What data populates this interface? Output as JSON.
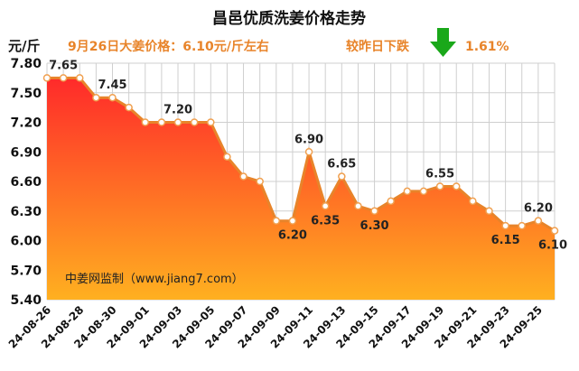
{
  "chart_data": {
    "type": "area",
    "title": "昌邑优质洗姜价格走势",
    "subtitle": "9月26日大姜价格：6.10元/斤左右",
    "change_text": "较昨日下跌",
    "change_pct": "1.61%",
    "ylabel": "元/斤",
    "ylim": [
      5.4,
      7.8
    ],
    "yticks": [
      "5.40",
      "5.70",
      "6.00",
      "6.30",
      "6.60",
      "6.90",
      "7.20",
      "7.50",
      "7.80"
    ],
    "watermark": "中姜网监制（www.jiang7.com）",
    "grid": true,
    "x": [
      "24-08-26",
      "24-08-27",
      "24-08-28",
      "24-08-29",
      "24-08-30",
      "24-08-31",
      "24-09-01",
      "24-09-02",
      "24-09-03",
      "24-09-04",
      "24-09-05",
      "24-09-06",
      "24-09-07",
      "24-09-08",
      "24-09-09",
      "24-09-10",
      "24-09-11",
      "24-09-12",
      "24-09-13",
      "24-09-14",
      "24-09-15",
      "24-09-16",
      "24-09-17",
      "24-09-18",
      "24-09-19",
      "24-09-20",
      "24-09-21",
      "24-09-22",
      "24-09-23",
      "24-09-24",
      "24-09-25",
      "24-09-26"
    ],
    "xtick_labels": [
      "24-08-26",
      "24-08-28",
      "24-08-30",
      "24-09-01",
      "24-09-03",
      "24-09-05",
      "24-09-07",
      "24-09-09",
      "24-09-11",
      "24-09-13",
      "24-09-15",
      "24-09-17",
      "24-09-19",
      "24-09-21",
      "24-09-23",
      "24-09-25"
    ],
    "values": [
      7.65,
      7.65,
      7.65,
      7.45,
      7.45,
      7.35,
      7.2,
      7.2,
      7.2,
      7.2,
      7.2,
      6.85,
      6.65,
      6.6,
      6.2,
      6.2,
      6.9,
      6.35,
      6.65,
      6.35,
      6.3,
      6.4,
      6.5,
      6.5,
      6.55,
      6.55,
      6.4,
      6.3,
      6.15,
      6.15,
      6.2,
      6.1
    ],
    "data_labels": [
      {
        "index": 1,
        "text": "7.65"
      },
      {
        "index": 4,
        "text": "7.45"
      },
      {
        "index": 8,
        "text": "7.20"
      },
      {
        "index": 15,
        "text": "6.20"
      },
      {
        "index": 16,
        "text": "6.90"
      },
      {
        "index": 17,
        "text": "6.35"
      },
      {
        "index": 18,
        "text": "6.65"
      },
      {
        "index": 20,
        "text": "6.30"
      },
      {
        "index": 24,
        "text": "6.55"
      },
      {
        "index": 28,
        "text": "6.15"
      },
      {
        "index": 30,
        "text": "6.20"
      },
      {
        "index": 31,
        "text": "6.10"
      }
    ],
    "colors": {
      "line": "#e8842a",
      "marker_stroke": "#f0a050",
      "fill_top": "#ff2a2a",
      "fill_bottom": "#ffb020",
      "grid": "#cfcfcf",
      "arrow": "#1aa81a",
      "subtitle": "#e8842a"
    }
  }
}
